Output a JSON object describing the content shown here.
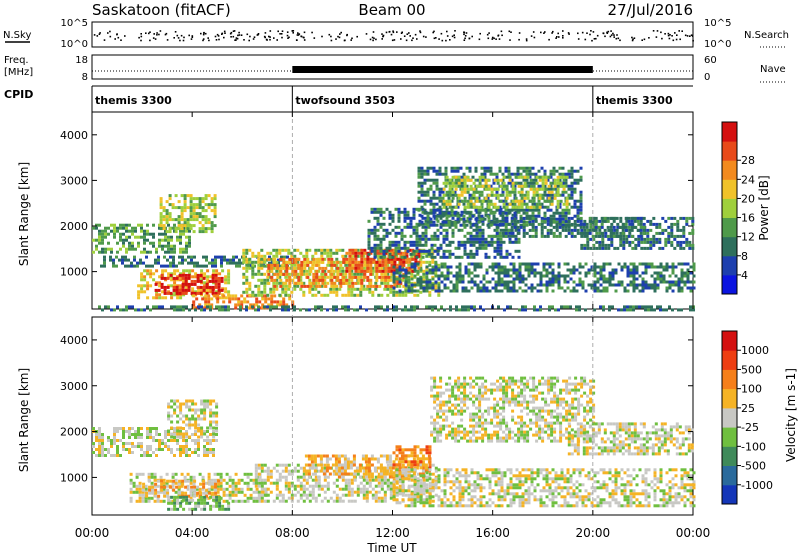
{
  "header": {
    "radar": "Saskatoon (fitACF)",
    "beam": "Beam 00",
    "date": "27/Jul/2016"
  },
  "noise_panel": {
    "left_label": "N.Sky",
    "right_label": "N.Search",
    "left_ticks": [
      "10^5",
      "10^0"
    ],
    "right_ticks": [
      "10^5",
      "10^0"
    ]
  },
  "freq_panel": {
    "left_label_1": "Freq.",
    "left_label_2": "[MHz]",
    "right_label": "Nave",
    "left_ticks": [
      "18",
      "8"
    ],
    "right_ticks": [
      "60",
      "0"
    ]
  },
  "cpid": {
    "label": "CPID",
    "segments": [
      {
        "name": "themis 3300",
        "start_h": 0,
        "end_h": 8
      },
      {
        "name": "twofsound 3503",
        "start_h": 8,
        "end_h": 20
      },
      {
        "name": "themis 3300",
        "start_h": 20,
        "end_h": 24
      }
    ]
  },
  "axes": {
    "ylabel": "Slant Range [km]",
    "y_ticks": [
      "1000",
      "2000",
      "3000",
      "4000"
    ],
    "x_ticks": [
      "00:00",
      "04:00",
      "08:00",
      "12:00",
      "16:00",
      "20:00",
      "00:00"
    ],
    "xlabel": "Time UT"
  },
  "power_colorbar": {
    "label": "Power [dB]",
    "ticks": [
      "4",
      "8",
      "12",
      "16",
      "20",
      "24",
      "28"
    ],
    "colors": [
      "#0b14e0",
      "#1d3fae",
      "#2e6f5c",
      "#4f9a4a",
      "#9fcf3c",
      "#f0c22a",
      "#f28a1e",
      "#e84a1a",
      "#d40f0f"
    ]
  },
  "velocity_colorbar": {
    "label": "Velocity [m s-1]",
    "ticks": [
      "1000",
      "500",
      "100",
      "25",
      "-25",
      "-100",
      "-500",
      "-1000"
    ],
    "colors": [
      "#1436b8",
      "#2a6a9c",
      "#3f8a5a",
      "#6fbf3f",
      "#c8c8c4",
      "#f5b325",
      "#f57f1a",
      "#ee3e12",
      "#d41010"
    ]
  },
  "chart_data": {
    "type": "heatmap",
    "x_unit": "hours UT",
    "xlim": [
      0,
      24
    ],
    "ylim_km": [
      180,
      4500
    ],
    "cpid_changes_h": [
      8,
      20
    ],
    "power_regions": [
      {
        "t0": 0.0,
        "t1": 3.9,
        "r0": 1450,
        "r1": 2050,
        "level": 3
      },
      {
        "t0": 2.7,
        "t1": 4.9,
        "r0": 1900,
        "r1": 2700,
        "level": 4
      },
      {
        "t0": 0.2,
        "t1": 8.0,
        "r0": 1100,
        "r1": 1350,
        "level": 2
      },
      {
        "t0": 1.8,
        "t1": 5.5,
        "r0": 450,
        "r1": 1050,
        "level": 5
      },
      {
        "t0": 2.5,
        "t1": 5.2,
        "r0": 550,
        "r1": 950,
        "level": 8
      },
      {
        "t0": 4.0,
        "t1": 8.0,
        "r0": 220,
        "r1": 500,
        "level": 6
      },
      {
        "t0": 0.0,
        "t1": 24.0,
        "r0": 180,
        "r1": 260,
        "level": 2
      },
      {
        "t0": 6.0,
        "t1": 13.8,
        "r0": 500,
        "r1": 1500,
        "level": 4
      },
      {
        "t0": 7.0,
        "t1": 12.5,
        "r0": 700,
        "r1": 1300,
        "level": 6
      },
      {
        "t0": 10.0,
        "t1": 13.0,
        "r0": 1000,
        "r1": 1500,
        "level": 7
      },
      {
        "t0": 11.0,
        "t1": 17.0,
        "r0": 1300,
        "r1": 2400,
        "level": 2
      },
      {
        "t0": 13.0,
        "t1": 19.5,
        "r0": 2000,
        "r1": 3300,
        "level": 2
      },
      {
        "t0": 14.0,
        "t1": 19.0,
        "r0": 2400,
        "r1": 3100,
        "level": 4
      },
      {
        "t0": 12.0,
        "t1": 24.0,
        "r0": 600,
        "r1": 1200,
        "level": 2
      },
      {
        "t0": 19.5,
        "t1": 24.0,
        "r0": 1500,
        "r1": 2200,
        "level": 2
      },
      {
        "t0": 16.0,
        "t1": 22.0,
        "r0": 1800,
        "r1": 2200,
        "level": 2
      }
    ],
    "velocity_regions": [
      {
        "t0": 0.0,
        "t1": 5.0,
        "r0": 1450,
        "r1": 2100,
        "level": 4
      },
      {
        "t0": 3.0,
        "t1": 5.0,
        "r0": 1900,
        "r1": 2700,
        "level": 4
      },
      {
        "t0": 1.5,
        "t1": 7.0,
        "r0": 450,
        "r1": 1100,
        "level": 4
      },
      {
        "t0": 2.0,
        "t1": 5.0,
        "r0": 600,
        "r1": 950,
        "level": 5
      },
      {
        "t0": 3.0,
        "t1": 5.5,
        "r0": 300,
        "r1": 600,
        "level": 3
      },
      {
        "t0": 6.5,
        "t1": 13.8,
        "r0": 500,
        "r1": 1300,
        "level": 4
      },
      {
        "t0": 8.5,
        "t1": 13.5,
        "r0": 1000,
        "r1": 1500,
        "level": 5
      },
      {
        "t0": 12.0,
        "t1": 13.5,
        "r0": 1200,
        "r1": 1700,
        "level": 6
      },
      {
        "t0": 13.5,
        "t1": 20.0,
        "r0": 1800,
        "r1": 3200,
        "level": 4
      },
      {
        "t0": 12.0,
        "t1": 24.0,
        "r0": 400,
        "r1": 1200,
        "level": 4
      },
      {
        "t0": 19.0,
        "t1": 24.0,
        "r0": 1500,
        "r1": 2200,
        "level": 4
      }
    ]
  }
}
